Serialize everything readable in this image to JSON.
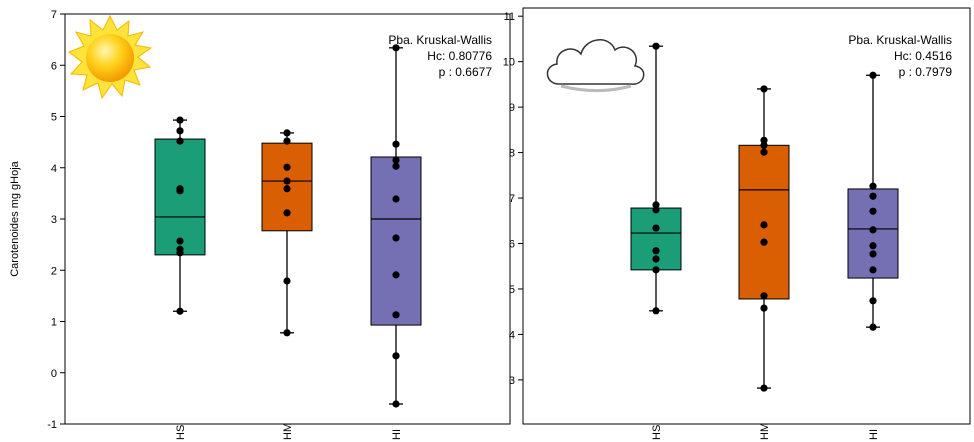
{
  "chart_data": [
    {
      "type": "box",
      "ylabel": "Carotenoides mg gHoja",
      "annotations": [
        "Pba. Kruskal-Wallis",
        "Hc: 0.80776",
        "p : 0.6677"
      ],
      "categories": [
        "HS",
        "HM",
        "HI"
      ],
      "colors": [
        "#1b9e77",
        "#d95f02",
        "#7570b3"
      ],
      "ylim": [
        -1,
        7
      ],
      "yticks": [
        -1,
        0,
        1,
        2,
        3,
        4,
        5,
        6,
        7
      ],
      "boxes": [
        {
          "low": 1.2,
          "q1": 2.3,
          "median": 3.04,
          "q3": 4.56,
          "high": 4.93,
          "points": [
            4.93,
            4.72,
            4.52,
            3.59,
            3.55,
            2.57,
            2.41,
            2.34,
            1.2
          ]
        },
        {
          "low": 0.78,
          "q1": 2.77,
          "median": 3.74,
          "q3": 4.48,
          "high": 4.68,
          "points": [
            4.68,
            4.52,
            4.01,
            3.74,
            3.59,
            3.12,
            1.79,
            0.78
          ]
        },
        {
          "low": -0.61,
          "q1": 0.93,
          "median": 3.0,
          "q3": 4.21,
          "high": 6.34,
          "points": [
            6.34,
            4.46,
            4.15,
            4.03,
            3.39,
            2.63,
            1.91,
            1.13,
            0.33,
            -0.61
          ]
        }
      ]
    },
    {
      "type": "box",
      "annotations": [
        "Pba. Kruskal-Wallis",
        "Hc: 0.4516",
        "p : 0.7979"
      ],
      "categories": [
        "HS",
        "HM",
        "HI"
      ],
      "colors": [
        "#1b9e77",
        "#d95f02",
        "#7570b3"
      ],
      "ylim": [
        2.03,
        11.18
      ],
      "yticks": [
        3,
        4,
        5,
        6,
        7,
        8,
        9,
        10,
        11
      ],
      "boxes": [
        {
          "low": 4.52,
          "q1": 5.42,
          "median": 6.23,
          "q3": 6.78,
          "high": 10.34,
          "points": [
            10.34,
            6.85,
            6.74,
            6.34,
            5.84,
            5.66,
            5.42,
            4.52
          ]
        },
        {
          "low": 2.82,
          "q1": 4.78,
          "median": 7.18,
          "q3": 8.16,
          "high": 9.4,
          "points": [
            9.4,
            8.27,
            8.16,
            8.01,
            6.41,
            6.03,
            4.85,
            4.58,
            2.82
          ]
        },
        {
          "low": 4.16,
          "q1": 5.24,
          "median": 6.32,
          "q3": 7.2,
          "high": 9.7,
          "points": [
            9.7,
            7.26,
            7.04,
            6.71,
            6.3,
            5.95,
            5.77,
            5.42,
            4.74,
            4.16
          ]
        }
      ]
    }
  ]
}
